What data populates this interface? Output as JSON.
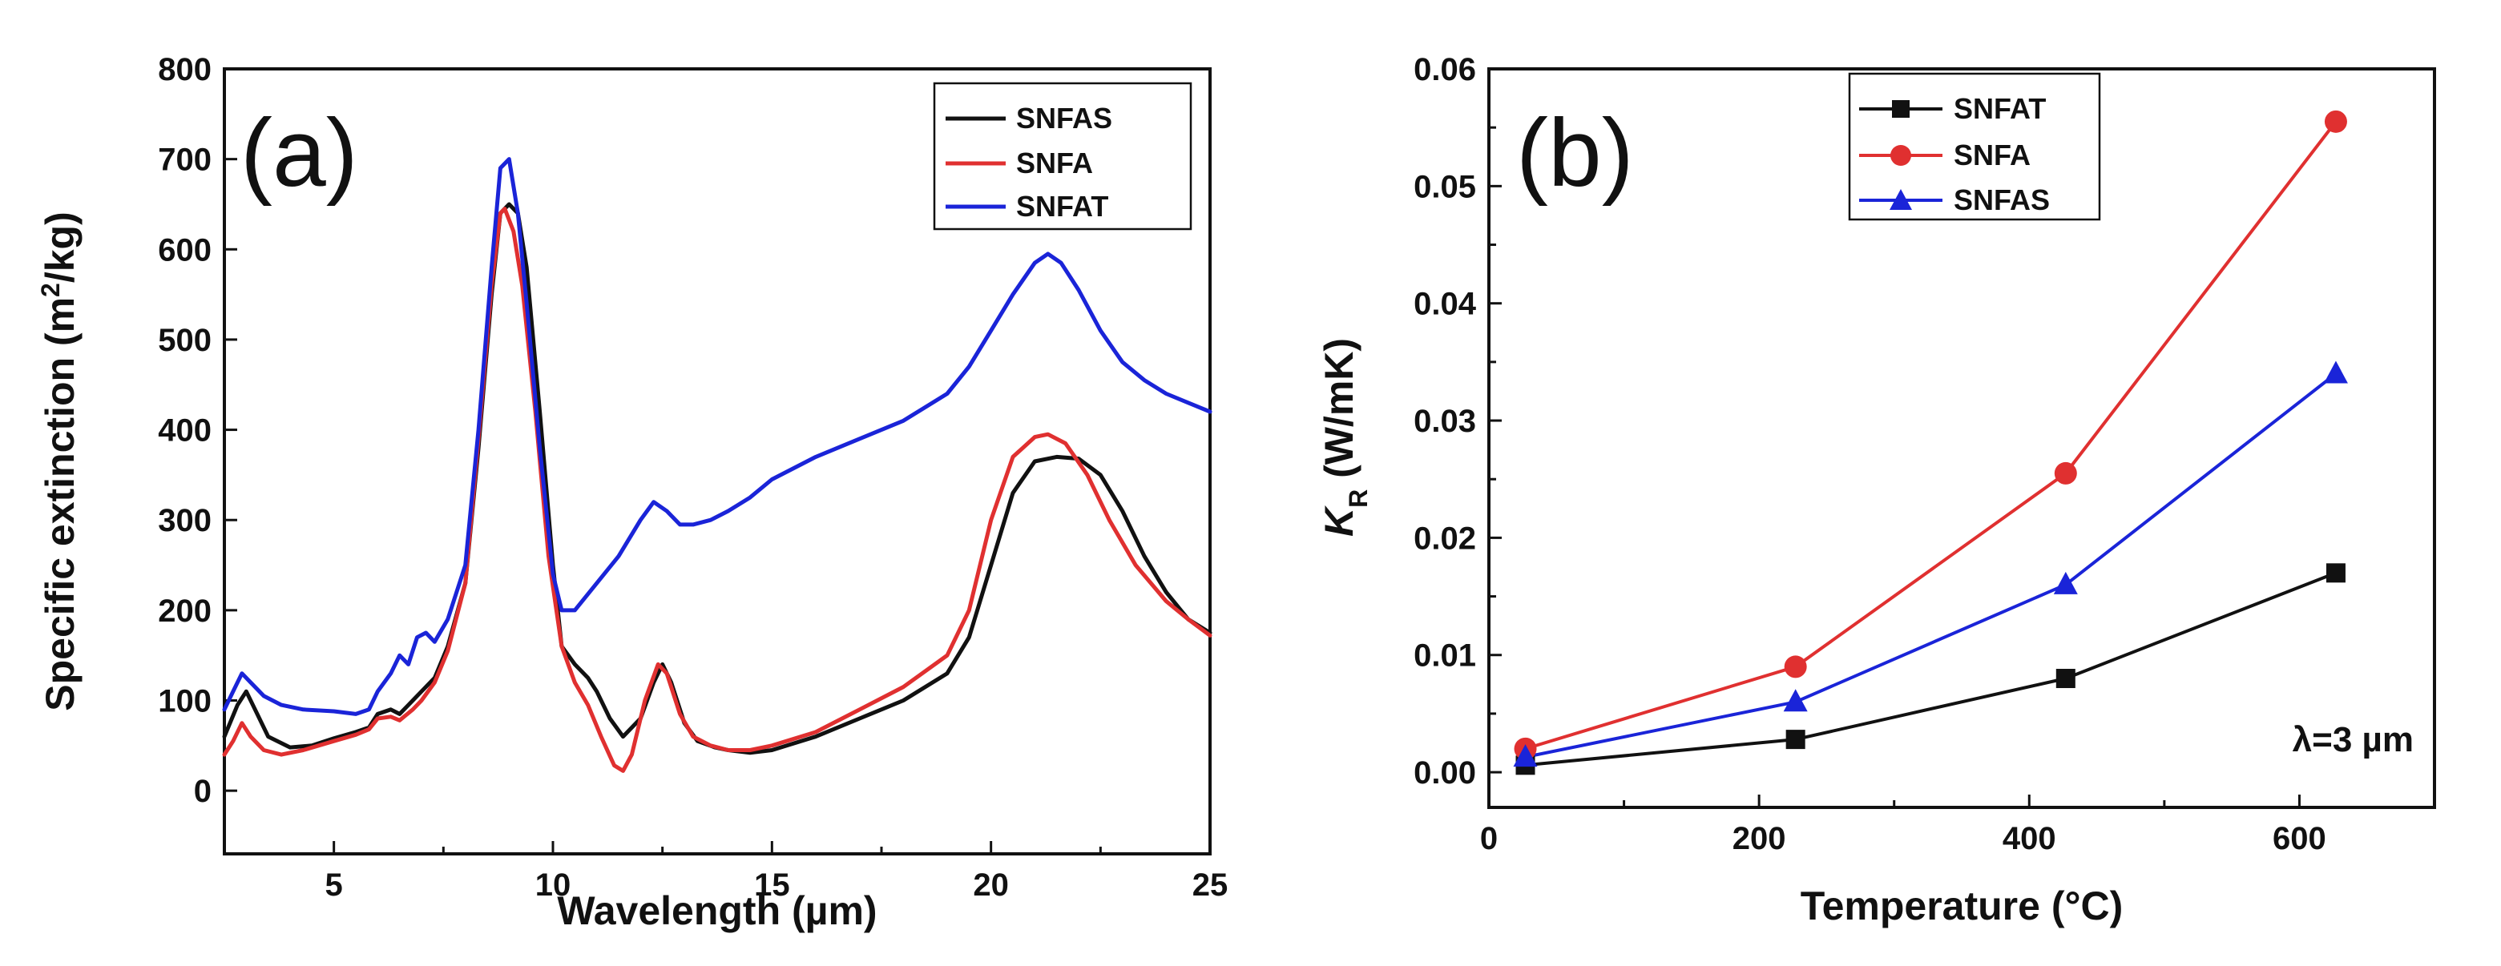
{
  "chart_data": [
    {
      "panel": "(a)",
      "type": "line",
      "xlabel": "Wavelength (µm)",
      "ylabel_prefix": "Specific extinction (m",
      "ylabel_sup": "2",
      "ylabel_suffix": "/kg)",
      "xlim": [
        2.5,
        25
      ],
      "ylim": [
        -70,
        800
      ],
      "xticks": [
        5,
        10,
        15,
        20,
        25
      ],
      "yticks": [
        0,
        100,
        200,
        300,
        400,
        500,
        600,
        700,
        800
      ],
      "legend_position": "top-right",
      "series": [
        {
          "name": "SNFAS",
          "color": "#111111",
          "x": [
            2.5,
            2.8,
            3.0,
            3.2,
            3.5,
            4.0,
            4.5,
            5.0,
            5.5,
            5.8,
            6.0,
            6.3,
            6.5,
            6.8,
            7.0,
            7.3,
            7.6,
            8.0,
            8.3,
            8.6,
            8.8,
            9.0,
            9.2,
            9.4,
            9.7,
            10.0,
            10.2,
            10.5,
            10.8,
            11.0,
            11.3,
            11.6,
            12.0,
            12.3,
            12.5,
            12.7,
            13.0,
            13.3,
            13.7,
            14.0,
            14.5,
            15.0,
            16.0,
            17.0,
            18.0,
            19.0,
            19.5,
            20.0,
            20.5,
            21.0,
            21.5,
            22.0,
            22.5,
            23.0,
            23.5,
            24.0,
            24.5,
            25.0
          ],
          "values": [
            60,
            95,
            110,
            90,
            60,
            48,
            50,
            58,
            65,
            70,
            85,
            90,
            85,
            100,
            110,
            125,
            160,
            230,
            380,
            550,
            640,
            650,
            640,
            580,
            420,
            250,
            160,
            140,
            125,
            110,
            80,
            60,
            80,
            120,
            140,
            120,
            75,
            55,
            48,
            45,
            42,
            45,
            60,
            80,
            100,
            130,
            170,
            250,
            330,
            365,
            370,
            368,
            350,
            310,
            260,
            220,
            190,
            175
          ]
        },
        {
          "name": "SNFA",
          "color": "#e03030",
          "x": [
            2.5,
            2.7,
            2.9,
            3.1,
            3.4,
            3.8,
            4.3,
            5.0,
            5.5,
            5.8,
            6.0,
            6.3,
            6.5,
            6.8,
            7.0,
            7.3,
            7.6,
            8.0,
            8.3,
            8.6,
            8.8,
            8.9,
            9.1,
            9.3,
            9.6,
            9.9,
            10.2,
            10.5,
            10.8,
            11.1,
            11.4,
            11.6,
            11.8,
            12.1,
            12.4,
            12.6,
            12.9,
            13.2,
            13.6,
            14.0,
            14.5,
            15.0,
            16.0,
            17.0,
            18.0,
            19.0,
            19.5,
            20.0,
            20.5,
            21.0,
            21.3,
            21.7,
            22.2,
            22.7,
            23.3,
            24.0,
            24.5,
            25.0
          ],
          "values": [
            40,
            55,
            75,
            60,
            45,
            40,
            45,
            55,
            62,
            68,
            80,
            82,
            78,
            90,
            100,
            120,
            155,
            230,
            390,
            560,
            640,
            645,
            620,
            560,
            420,
            260,
            160,
            120,
            95,
            60,
            28,
            22,
            40,
            100,
            140,
            130,
            85,
            60,
            50,
            45,
            45,
            50,
            65,
            90,
            115,
            150,
            200,
            300,
            370,
            392,
            395,
            385,
            350,
            300,
            250,
            210,
            190,
            172
          ]
        },
        {
          "name": "SNFAT",
          "color": "#1a24d8",
          "x": [
            2.5,
            2.7,
            2.9,
            3.1,
            3.4,
            3.8,
            4.3,
            5.0,
            5.5,
            5.8,
            6.0,
            6.3,
            6.5,
            6.7,
            6.9,
            7.1,
            7.3,
            7.6,
            8.0,
            8.3,
            8.6,
            8.8,
            9.0,
            9.2,
            9.4,
            9.7,
            10.0,
            10.2,
            10.5,
            11.0,
            11.5,
            12.0,
            12.3,
            12.6,
            12.9,
            13.2,
            13.6,
            14.0,
            14.5,
            15.0,
            16.0,
            17.0,
            18.0,
            19.0,
            19.5,
            20.0,
            20.5,
            21.0,
            21.3,
            21.6,
            22.0,
            22.5,
            23.0,
            23.5,
            24.0,
            24.5,
            25.0
          ],
          "values": [
            90,
            110,
            130,
            120,
            105,
            95,
            90,
            88,
            85,
            90,
            110,
            130,
            150,
            140,
            170,
            175,
            165,
            190,
            250,
            400,
            580,
            690,
            700,
            640,
            540,
            380,
            240,
            200,
            200,
            230,
            260,
            300,
            320,
            310,
            295,
            295,
            300,
            310,
            325,
            345,
            370,
            390,
            410,
            440,
            470,
            510,
            550,
            585,
            595,
            585,
            555,
            510,
            475,
            455,
            440,
            430,
            420
          ]
        }
      ]
    },
    {
      "panel": "(b)",
      "type": "line",
      "xlabel": "Temperature (°C)",
      "ylabel_main": "K",
      "ylabel_sub": "R",
      "ylabel_suffix": " (W/mK)",
      "xlim": [
        0,
        700
      ],
      "ylim": [
        -0.003,
        0.06
      ],
      "xticks": [
        0,
        200,
        400,
        600
      ],
      "yticks": [
        0.0,
        0.01,
        0.02,
        0.03,
        0.04,
        0.05,
        0.06
      ],
      "ytick_labels": [
        "0.00",
        "0.01",
        "0.02",
        "0.03",
        "0.04",
        "0.05",
        "0.06"
      ],
      "legend_position": "top-left",
      "annotation": "λ=3 µm",
      "series": [
        {
          "name": "SNFAT",
          "color": "#111111",
          "marker": "square",
          "x": [
            27,
            227,
            427,
            627
          ],
          "values": [
            0.0006,
            0.0028,
            0.008,
            0.017
          ]
        },
        {
          "name": "SNFA",
          "color": "#e03030",
          "marker": "circle",
          "x": [
            27,
            227,
            427,
            627
          ],
          "values": [
            0.002,
            0.009,
            0.0255,
            0.0555
          ]
        },
        {
          "name": "SNFAS",
          "color": "#1a24d8",
          "marker": "triangle",
          "x": [
            27,
            227,
            427,
            627
          ],
          "values": [
            0.0013,
            0.006,
            0.016,
            0.034
          ]
        }
      ]
    }
  ]
}
